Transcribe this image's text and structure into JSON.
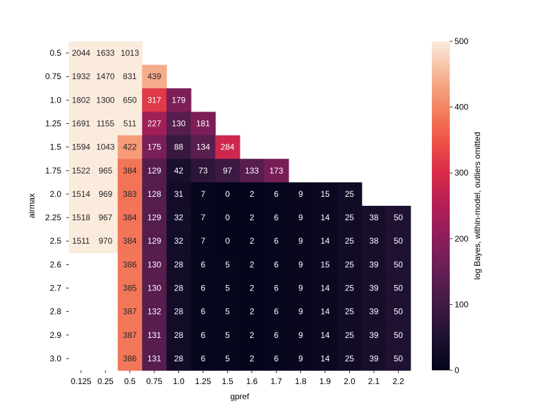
{
  "chart_data": {
    "type": "heatmap",
    "xlabel": "gpref",
    "ylabel": "airmax",
    "x_categories": [
      "0.125",
      "0.25",
      "0.5",
      "0.75",
      "1.0",
      "1.25",
      "1.5",
      "1.6",
      "1.7",
      "1.8",
      "1.9",
      "2.0",
      "2.1",
      "2.2"
    ],
    "y_categories": [
      "0.5",
      "0.75",
      "1.0",
      "1.25",
      "1.5",
      "1.75",
      "2.0",
      "2.25",
      "2.5",
      "2.6",
      "2.7",
      "2.8",
      "2.9",
      "3.0"
    ],
    "values": [
      [
        2044,
        1633,
        1013,
        null,
        null,
        null,
        null,
        null,
        null,
        null,
        null,
        null,
        null,
        null
      ],
      [
        1932,
        1470,
        831,
        439,
        null,
        null,
        null,
        null,
        null,
        null,
        null,
        null,
        null,
        null
      ],
      [
        1802,
        1300,
        650,
        317,
        179,
        null,
        null,
        null,
        null,
        null,
        null,
        null,
        null,
        null
      ],
      [
        1691,
        1155,
        511,
        227,
        130,
        181,
        null,
        null,
        null,
        null,
        null,
        null,
        null,
        null
      ],
      [
        1594,
        1043,
        422,
        175,
        88,
        134,
        284,
        null,
        null,
        null,
        null,
        null,
        null,
        null
      ],
      [
        1522,
        965,
        384,
        129,
        42,
        73,
        97,
        133,
        173,
        null,
        null,
        null,
        null,
        null
      ],
      [
        1514,
        969,
        383,
        128,
        31,
        7,
        0,
        2,
        6,
        9,
        15,
        25,
        null,
        null
      ],
      [
        1518,
        967,
        384,
        129,
        32,
        7,
        0,
        2,
        6,
        9,
        14,
        25,
        38,
        50
      ],
      [
        1511,
        970,
        384,
        129,
        32,
        7,
        0,
        2,
        6,
        9,
        14,
        25,
        38,
        50
      ],
      [
        null,
        null,
        386,
        130,
        28,
        6,
        5,
        2,
        6,
        9,
        15,
        25,
        39,
        50
      ],
      [
        null,
        null,
        385,
        130,
        28,
        6,
        5,
        2,
        6,
        9,
        14,
        25,
        39,
        50
      ],
      [
        null,
        null,
        387,
        132,
        28,
        6,
        5,
        2,
        6,
        9,
        14,
        25,
        39,
        50
      ],
      [
        null,
        null,
        387,
        131,
        28,
        6,
        5,
        2,
        6,
        9,
        14,
        25,
        39,
        50
      ],
      [
        null,
        null,
        386,
        131,
        28,
        6,
        5,
        2,
        6,
        9,
        14,
        25,
        39,
        50
      ]
    ],
    "colorbar": {
      "label": "log Bayes, within-model, outliers omitted",
      "vmin": 0,
      "vmax": 500,
      "ticks": [
        0,
        100,
        200,
        300,
        400,
        500
      ],
      "colormap": "rocket"
    },
    "grid": false,
    "legend": "colorbar-right"
  }
}
